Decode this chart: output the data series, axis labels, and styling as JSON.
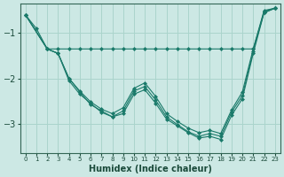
{
  "xlabel": "Humidex (Indice chaleur)",
  "background_color": "#cce8e4",
  "grid_color": "#aad4cc",
  "line_color": "#1a7a6a",
  "xlim": [
    -0.5,
    23.5
  ],
  "ylim": [
    -3.65,
    -0.35
  ],
  "yticks": [
    -3,
    -2,
    -1
  ],
  "xticks": [
    0,
    1,
    2,
    3,
    4,
    5,
    6,
    7,
    8,
    9,
    10,
    11,
    12,
    13,
    14,
    15,
    16,
    17,
    18,
    19,
    20,
    21,
    22,
    23
  ],
  "lines": [
    {
      "x": [
        0,
        1,
        2,
        3,
        4,
        5,
        6,
        7,
        8,
        9,
        10,
        11,
        12,
        13,
        14,
        15,
        16,
        17,
        18,
        19,
        20,
        21,
        22,
        23
      ],
      "y": [
        -0.6,
        -0.9,
        -1.35,
        -1.35,
        -1.35,
        -1.35,
        -1.35,
        -1.35,
        -1.35,
        -1.35,
        -1.35,
        -1.35,
        -1.35,
        -1.35,
        -1.35,
        -1.35,
        -1.35,
        -1.35,
        -1.35,
        -1.35,
        -1.35,
        -1.35,
        -0.55,
        -0.45
      ]
    },
    {
      "x": [
        0,
        2,
        3,
        4,
        5,
        6,
        7,
        8,
        9,
        10,
        11,
        12,
        13,
        14,
        15,
        16,
        17,
        18,
        19,
        20,
        21,
        22,
        23
      ],
      "y": [
        -0.6,
        -1.35,
        -1.45,
        -2.05,
        -2.35,
        -2.55,
        -2.75,
        -2.85,
        -2.72,
        -2.28,
        -2.18,
        -2.48,
        -2.85,
        -3.02,
        -3.18,
        -3.28,
        -3.22,
        -3.28,
        -2.75,
        -2.38,
        -1.4,
        -0.52,
        -0.45
      ]
    },
    {
      "x": [
        0,
        2,
        3,
        4,
        5,
        6,
        7,
        8,
        9,
        10,
        11,
        12,
        13,
        14,
        15,
        16,
        17,
        18,
        19,
        20,
        21,
        22,
        23
      ],
      "y": [
        -0.6,
        -1.35,
        -1.45,
        -2.0,
        -2.28,
        -2.52,
        -2.68,
        -2.78,
        -2.65,
        -2.22,
        -2.1,
        -2.4,
        -2.78,
        -2.95,
        -3.1,
        -3.2,
        -3.15,
        -3.22,
        -2.7,
        -2.3,
        -1.35,
        -0.5,
        -0.45
      ]
    },
    {
      "x": [
        0,
        2,
        3,
        4,
        5,
        6,
        7,
        8,
        9,
        10,
        11,
        12,
        13,
        14,
        15,
        16,
        17,
        18,
        19,
        20,
        21,
        22,
        23
      ],
      "y": [
        -0.6,
        -1.35,
        -1.45,
        -2.0,
        -2.3,
        -2.58,
        -2.72,
        -2.85,
        -2.78,
        -2.35,
        -2.25,
        -2.55,
        -2.9,
        -3.05,
        -3.2,
        -3.32,
        -3.28,
        -3.35,
        -2.82,
        -2.45,
        -1.45,
        -0.55,
        -0.45
      ]
    }
  ]
}
